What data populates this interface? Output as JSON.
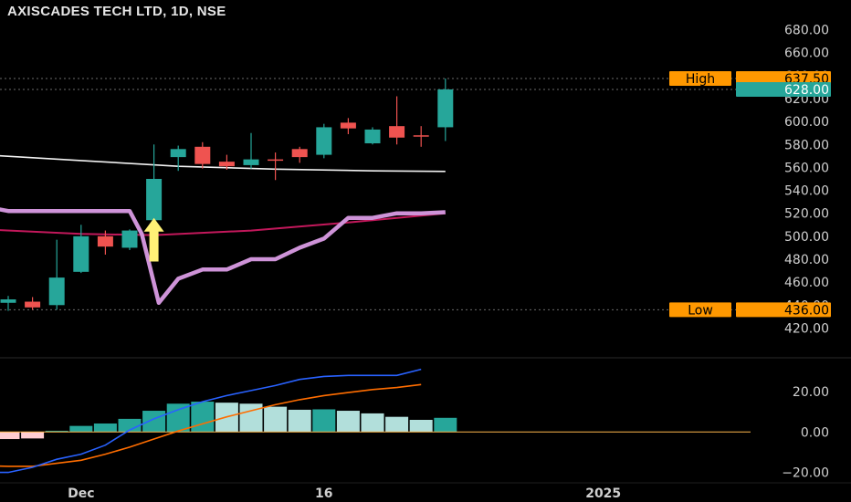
{
  "header": {
    "title": "AXISCADES TECH LTD, 1D, NSE"
  },
  "colors": {
    "up": "#26a69a",
    "down": "#ef5350",
    "background": "#000000",
    "ma_white": "#f2f2f2",
    "ma_red": "#c2185b",
    "stop_line": "#ce93d8",
    "arrow": "#fff176",
    "tag_orange": "#ff9800",
    "macd_line": "#2962ff",
    "signal_line": "#ff6d00",
    "hist_up_strong": "#26a69a",
    "hist_up_weak": "#b2dfdb",
    "hist_down_weak": "#ffcdd2",
    "zero_line": "#ffb74d"
  },
  "chart_data": [
    {
      "type": "candlestick",
      "title": "AXISCADES TECH LTD, 1D, NSE",
      "ylim": [
        410,
        690
      ],
      "y_ticks": [
        420,
        440,
        460,
        480,
        500,
        520,
        540,
        560,
        580,
        600,
        620,
        640,
        660,
        680
      ],
      "y_tick_labels": [
        "420.00",
        "440.00",
        "460.00",
        "480.00",
        "500.00",
        "520.00",
        "540.00",
        "560.00",
        "580.00",
        "600.00",
        "620.00",
        "640.00",
        "660.00",
        "680.00"
      ],
      "x_tick_labels": [
        {
          "label": "Dec",
          "x": 3
        },
        {
          "label": "16",
          "x": 13
        },
        {
          "label": "2025",
          "x": 24.5
        }
      ],
      "candles": [
        {
          "x": 0,
          "o": 442,
          "h": 448,
          "c": 445,
          "l": 435
        },
        {
          "x": 1,
          "o": 443,
          "h": 447,
          "c": 438,
          "l": 436
        },
        {
          "x": 2,
          "o": 440,
          "h": 497,
          "c": 464,
          "l": 436
        },
        {
          "x": 3,
          "o": 469,
          "h": 510,
          "c": 500,
          "l": 468
        },
        {
          "x": 4,
          "o": 500,
          "h": 505,
          "c": 491,
          "l": 484
        },
        {
          "x": 5,
          "o": 490,
          "h": 506,
          "c": 505,
          "l": 488
        },
        {
          "x": 6,
          "o": 514,
          "h": 580,
          "c": 550,
          "l": 512
        },
        {
          "x": 7,
          "o": 569,
          "h": 579,
          "c": 576,
          "l": 557
        },
        {
          "x": 8,
          "o": 578,
          "h": 582,
          "c": 563,
          "l": 559
        },
        {
          "x": 9,
          "o": 565,
          "h": 571,
          "c": 561,
          "l": 558
        },
        {
          "x": 10,
          "o": 562,
          "h": 590,
          "c": 567,
          "l": 559
        },
        {
          "x": 11,
          "o": 567,
          "h": 573,
          "c": 566,
          "l": 549
        },
        {
          "x": 12,
          "o": 576,
          "h": 578,
          "c": 569,
          "l": 564
        },
        {
          "x": 13,
          "o": 571,
          "h": 598,
          "c": 595,
          "l": 568
        },
        {
          "x": 14,
          "o": 599,
          "h": 603,
          "c": 594,
          "l": 589
        },
        {
          "x": 15,
          "o": 581,
          "h": 595,
          "c": 593,
          "l": 580
        },
        {
          "x": 16,
          "o": 596,
          "h": 622,
          "c": 586,
          "l": 580
        },
        {
          "x": 17,
          "o": 588,
          "h": 596,
          "c": 587,
          "l": 578
        },
        {
          "x": 18,
          "o": 595,
          "h": 637.5,
          "c": 628,
          "l": 583
        }
      ],
      "ma_white": [
        [
          -1,
          571
        ],
        [
          3,
          566
        ],
        [
          7,
          561
        ],
        [
          11,
          558.5
        ],
        [
          15,
          557
        ],
        [
          18,
          556.5
        ]
      ],
      "ma_red": [
        [
          -1,
          506
        ],
        [
          3,
          502
        ],
        [
          6,
          501
        ],
        [
          10,
          505
        ],
        [
          14,
          512
        ],
        [
          18,
          520
        ]
      ],
      "stop_line": [
        [
          -1,
          526
        ],
        [
          0,
          522
        ],
        [
          5,
          522
        ],
        [
          5.5,
          502
        ],
        [
          6.2,
          442
        ],
        [
          7,
          463
        ],
        [
          8,
          471
        ],
        [
          9,
          471
        ],
        [
          10,
          480
        ],
        [
          11,
          480
        ],
        [
          12,
          490
        ],
        [
          13,
          498
        ],
        [
          14,
          516
        ],
        [
          15,
          516
        ],
        [
          16,
          520
        ],
        [
          17,
          520
        ],
        [
          18,
          521
        ]
      ],
      "signal_arrow": {
        "x": 6,
        "from": 478,
        "to": 516
      },
      "levels": [
        {
          "label": "High",
          "value": 637.5,
          "value_label": "637.50",
          "dotted": true
        },
        {
          "label": "",
          "value": 628.0,
          "value_label": "628.00",
          "dotted": true
        },
        {
          "label": "Low",
          "value": 436.0,
          "value_label": "436.00",
          "dotted": true
        }
      ]
    },
    {
      "type": "macd",
      "ylim": [
        -22,
        34
      ],
      "y_ticks": [
        -20,
        0,
        20
      ],
      "y_tick_labels": [
        "−20.00",
        "0.00",
        "20.00"
      ],
      "histogram": [
        -3.5,
        -3.2,
        0.6,
        3,
        4.2,
        6.5,
        10.5,
        14,
        15,
        14.5,
        14,
        12.5,
        11,
        11.2,
        10.5,
        9.2,
        7.5,
        6,
        7
      ],
      "macd": [
        [
          -1.5,
          -20
        ],
        [
          0,
          -20
        ],
        [
          1,
          -17.5
        ],
        [
          2,
          -13.5
        ],
        [
          3,
          -11
        ],
        [
          4,
          -6.5
        ],
        [
          5,
          1
        ],
        [
          6,
          6.5
        ],
        [
          7,
          11
        ],
        [
          8,
          15
        ],
        [
          9,
          18
        ],
        [
          10,
          20.5
        ],
        [
          11,
          23
        ],
        [
          12,
          26
        ],
        [
          13,
          27.5
        ],
        [
          14,
          28
        ],
        [
          15,
          28
        ],
        [
          16,
          28
        ],
        [
          17,
          31
        ]
      ],
      "signal": [
        [
          -1.5,
          -16.5
        ],
        [
          0,
          -17
        ],
        [
          1,
          -17
        ],
        [
          2,
          -15.5
        ],
        [
          3,
          -14
        ],
        [
          4,
          -11
        ],
        [
          5,
          -7.5
        ],
        [
          6,
          -3.5
        ],
        [
          7,
          0.5
        ],
        [
          8,
          4
        ],
        [
          9,
          7.5
        ],
        [
          10,
          10.5
        ],
        [
          11,
          13.5
        ],
        [
          12,
          16
        ],
        [
          13,
          18
        ],
        [
          14,
          19.5
        ],
        [
          15,
          21
        ],
        [
          16,
          22
        ],
        [
          17,
          23.5
        ]
      ]
    }
  ]
}
